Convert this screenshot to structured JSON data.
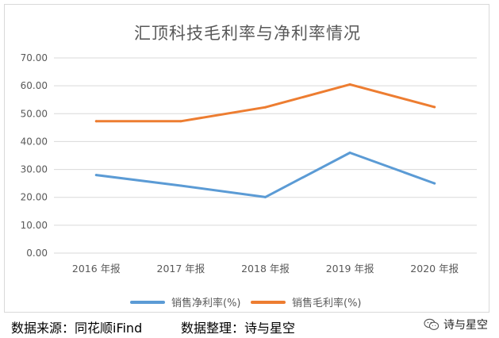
{
  "chart_data": {
    "type": "line",
    "title": "汇顶科技毛利率与净利率情况",
    "categories": [
      "2016 年报",
      "2017 年报",
      "2018 年报",
      "2019 年报",
      "2020 年报"
    ],
    "series": [
      {
        "name": "销售净利率(%)",
        "color": "#5b9bd5",
        "values": [
          28.0,
          24.2,
          20.1,
          36.0,
          25.0
        ]
      },
      {
        "name": "销售毛利率(%)",
        "color": "#ed7d31",
        "values": [
          47.3,
          47.3,
          52.3,
          60.5,
          52.4
        ]
      }
    ],
    "y_ticks": [
      "0.00",
      "10.00",
      "20.00",
      "30.00",
      "40.00",
      "50.00",
      "60.00",
      "70.00"
    ],
    "ylim": [
      0,
      70
    ],
    "grid": true,
    "legend_position": "bottom"
  },
  "footer": {
    "source": "数据来源：同花顺iFind",
    "organizer": "数据整理：诗与星空"
  },
  "watermark": {
    "icon": "wechat-icon",
    "text": "诗与星空"
  }
}
